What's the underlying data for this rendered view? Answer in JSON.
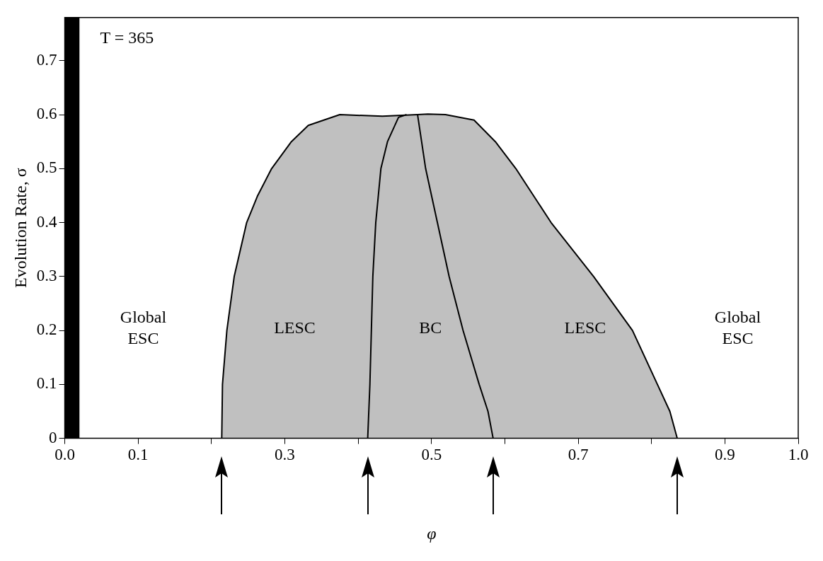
{
  "chart_data": {
    "type": "area",
    "xlabel": "φ",
    "ylabel": "Evolution Rate, σ",
    "xlim": [
      0,
      1
    ],
    "xticks": [
      {
        "value": 0,
        "label": "0.0"
      },
      0.1,
      {
        "value": 0.2,
        "label": null
      },
      0.3,
      {
        "value": 0.4,
        "label": null
      },
      0.5,
      {
        "value": 0.6,
        "label": null
      },
      0.7,
      {
        "value": 0.8,
        "label": null
      },
      0.9,
      {
        "value": 1,
        "label": "1.0"
      }
    ],
    "ylim": [
      0,
      0.78
    ],
    "yticks": [
      0,
      0.1,
      0.2,
      0.3,
      0.4,
      0.5,
      0.6,
      0.7
    ],
    "grid": false,
    "legend": false,
    "marker": "none",
    "line_style": "solid",
    "series": [
      {
        "type": "area",
        "color": "#c0c0c0",
        "x": [
          0.214,
          0.215,
          0.221,
          0.231,
          0.248,
          0.263,
          0.282,
          0.309,
          0.332,
          0.375,
          0.433,
          0.481,
          0.495,
          0.519,
          0.558,
          0.587,
          0.615,
          0.663,
          0.721,
          0.774,
          0.808,
          0.825,
          0.835
        ],
        "values": [
          0,
          0.1,
          0.2,
          0.3,
          0.4,
          0.45,
          0.5,
          0.55,
          0.58,
          0.6,
          0.597,
          0.6,
          0.601,
          0.6,
          0.59,
          0.55,
          0.5,
          0.4,
          0.3,
          0.2,
          0.1,
          0.05,
          0
        ]
      },
      {
        "type": "line",
        "color": "#000000",
        "x": [
          0.413,
          0.416,
          0.42,
          0.424,
          0.431,
          0.44,
          0.455,
          0.466
        ],
        "values": [
          0,
          0.1,
          0.3,
          0.4,
          0.5,
          0.55,
          0.595,
          0.6
        ]
      },
      {
        "type": "line",
        "color": "#000000",
        "x": [
          0.584,
          0.577,
          0.565,
          0.543,
          0.524,
          0.508,
          0.492,
          0.481
        ],
        "values": [
          0,
          0.05,
          0.1,
          0.2,
          0.3,
          0.4,
          0.5,
          0.6
        ]
      }
    ],
    "bands": [
      {
        "axis": "x",
        "from": 0,
        "to": 0.02,
        "color": "#000000"
      }
    ],
    "annotations": [
      "T = 365",
      "Global\nESC",
      "LESC",
      "BC",
      "LESC",
      "Global\nESC"
    ]
  }
}
